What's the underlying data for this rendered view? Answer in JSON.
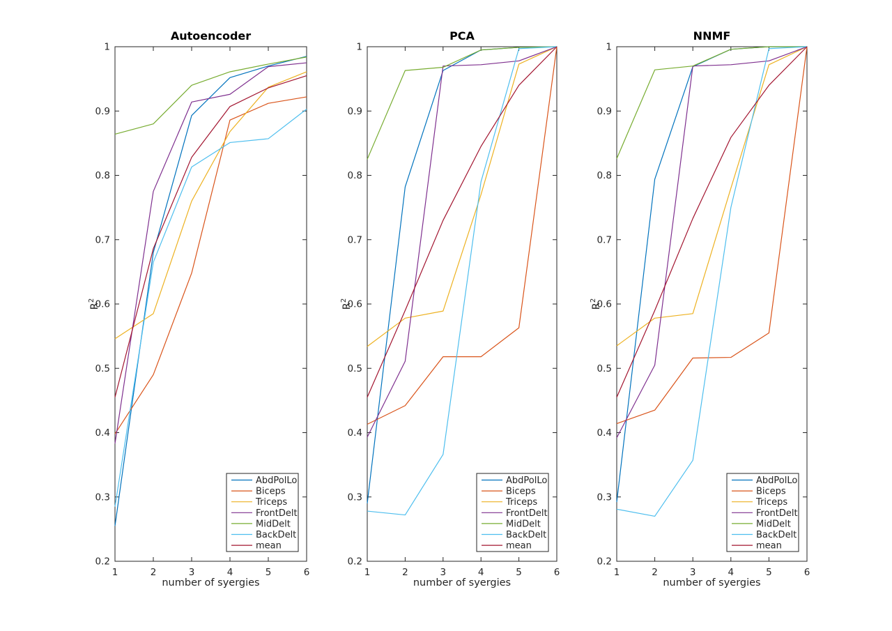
{
  "figure": {
    "background": "#ffffff",
    "axis_color": "#262626",
    "text_color": "#262626",
    "title_color": "#000000"
  },
  "legend": {
    "position": "bottom-right",
    "entries": [
      "AbdPolLo",
      "Biceps",
      "Triceps",
      "FrontDelt",
      "MidDelt",
      "BackDelt",
      "mean"
    ]
  },
  "series_colors": {
    "AbdPolLo": "#0072BD",
    "Biceps": "#D95319",
    "Triceps": "#EDB120",
    "FrontDelt": "#7E2F8E",
    "MidDelt": "#77AC30",
    "BackDelt": "#4DBEEE",
    "mean": "#A2142F"
  },
  "chart_data": [
    {
      "type": "line",
      "title": "Autoencoder",
      "xlabel": "number of syergies",
      "ylabel_base": "R",
      "ylabel_sup": "2",
      "xlim": [
        1,
        6
      ],
      "ylim": [
        0.2,
        1
      ],
      "x": [
        1,
        2,
        3,
        4,
        5,
        6
      ],
      "xtick_labels": [
        "1",
        "2",
        "3",
        "4",
        "5",
        "6"
      ],
      "ytick_labels": [
        "0.2",
        "0.3",
        "0.4",
        "0.5",
        "0.6",
        "0.7",
        "0.8",
        "0.9",
        "1"
      ],
      "yticks": [
        0.2,
        0.3,
        0.4,
        0.5,
        0.6,
        0.7,
        0.8,
        0.9,
        1
      ],
      "grid": false,
      "legend_position": "bottom-right",
      "series": [
        {
          "name": "AbdPolLo",
          "color": "#0072BD",
          "values": [
            0.255,
            0.68,
            0.893,
            0.952,
            0.97,
            0.985
          ]
        },
        {
          "name": "Biceps",
          "color": "#D95319",
          "values": [
            0.398,
            0.49,
            0.648,
            0.886,
            0.912,
            0.922
          ]
        },
        {
          "name": "Triceps",
          "color": "#EDB120",
          "values": [
            0.546,
            0.585,
            0.76,
            0.868,
            0.937,
            0.961
          ]
        },
        {
          "name": "FrontDelt",
          "color": "#7E2F8E",
          "values": [
            0.383,
            0.775,
            0.914,
            0.926,
            0.969,
            0.975
          ]
        },
        {
          "name": "MidDelt",
          "color": "#77AC30",
          "values": [
            0.864,
            0.88,
            0.94,
            0.961,
            0.973,
            0.984
          ]
        },
        {
          "name": "BackDelt",
          "color": "#4DBEEE",
          "values": [
            0.285,
            0.665,
            0.813,
            0.851,
            0.857,
            0.903
          ]
        },
        {
          "name": "mean",
          "color": "#A2142F",
          "values": [
            0.455,
            0.686,
            0.828,
            0.907,
            0.936,
            0.955
          ]
        }
      ]
    },
    {
      "type": "line",
      "title": "PCA",
      "xlabel": "number of syergies",
      "ylabel_base": "R",
      "ylabel_sup": "2",
      "xlim": [
        1,
        6
      ],
      "ylim": [
        0.2,
        1
      ],
      "x": [
        1,
        2,
        3,
        4,
        5,
        6
      ],
      "xtick_labels": [
        "1",
        "2",
        "3",
        "4",
        "5",
        "6"
      ],
      "ytick_labels": [
        "0.2",
        "0.3",
        "0.4",
        "0.5",
        "0.6",
        "0.7",
        "0.8",
        "0.9",
        "1"
      ],
      "yticks": [
        0.2,
        0.3,
        0.4,
        0.5,
        0.6,
        0.7,
        0.8,
        0.9,
        1
      ],
      "grid": false,
      "legend_position": "bottom-right",
      "series": [
        {
          "name": "AbdPolLo",
          "color": "#0072BD",
          "values": [
            0.29,
            0.782,
            0.963,
            0.995,
            0.999,
            1.0
          ]
        },
        {
          "name": "Biceps",
          "color": "#D95319",
          "values": [
            0.413,
            0.442,
            0.518,
            0.518,
            0.563,
            1.0
          ]
        },
        {
          "name": "Triceps",
          "color": "#EDB120",
          "values": [
            0.534,
            0.578,
            0.589,
            0.77,
            0.973,
            1.0
          ]
        },
        {
          "name": "FrontDelt",
          "color": "#7E2F8E",
          "values": [
            0.393,
            0.511,
            0.97,
            0.972,
            0.978,
            1.0
          ]
        },
        {
          "name": "MidDelt",
          "color": "#77AC30",
          "values": [
            0.825,
            0.963,
            0.968,
            0.995,
            0.999,
            1.0
          ]
        },
        {
          "name": "BackDelt",
          "color": "#4DBEEE",
          "values": [
            0.278,
            0.272,
            0.366,
            0.79,
            0.997,
            1.0
          ]
        },
        {
          "name": "mean",
          "color": "#A2142F",
          "values": [
            0.455,
            0.59,
            0.73,
            0.845,
            0.94,
            1.0
          ]
        }
      ]
    },
    {
      "type": "line",
      "title": "NNMF",
      "xlabel": "number of syergies",
      "ylabel_base": "R",
      "ylabel_sup": "2",
      "xlim": [
        1,
        6
      ],
      "ylim": [
        0.2,
        1
      ],
      "x": [
        1,
        2,
        3,
        4,
        5,
        6
      ],
      "xtick_labels": [
        "1",
        "2",
        "3",
        "4",
        "5",
        "6"
      ],
      "ytick_labels": [
        "0.2",
        "0.3",
        "0.4",
        "0.5",
        "0.6",
        "0.7",
        "0.8",
        "0.9",
        "1"
      ],
      "yticks": [
        0.2,
        0.3,
        0.4,
        0.5,
        0.6,
        0.7,
        0.8,
        0.9,
        1
      ],
      "grid": false,
      "legend_position": "bottom-right",
      "series": [
        {
          "name": "AbdPolLo",
          "color": "#0072BD",
          "values": [
            0.292,
            0.794,
            0.969,
            0.996,
            1.0,
            1.0
          ]
        },
        {
          "name": "Biceps",
          "color": "#D95319",
          "values": [
            0.414,
            0.435,
            0.516,
            0.517,
            0.555,
            1.0
          ]
        },
        {
          "name": "Triceps",
          "color": "#EDB120",
          "values": [
            0.535,
            0.578,
            0.585,
            0.78,
            0.972,
            1.0
          ]
        },
        {
          "name": "FrontDelt",
          "color": "#7E2F8E",
          "values": [
            0.392,
            0.505,
            0.97,
            0.972,
            0.978,
            1.0
          ]
        },
        {
          "name": "MidDelt",
          "color": "#77AC30",
          "values": [
            0.826,
            0.964,
            0.97,
            0.996,
            1.0,
            1.0
          ]
        },
        {
          "name": "BackDelt",
          "color": "#4DBEEE",
          "values": [
            0.281,
            0.27,
            0.357,
            0.75,
            0.997,
            1.0
          ]
        },
        {
          "name": "mean",
          "color": "#A2142F",
          "values": [
            0.455,
            0.59,
            0.733,
            0.859,
            0.94,
            1.0
          ]
        }
      ]
    }
  ]
}
